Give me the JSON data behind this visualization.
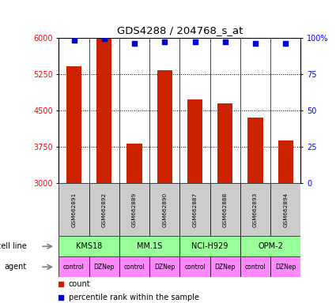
{
  "title": "GDS4288 / 204768_s_at",
  "samples": [
    "GSM662891",
    "GSM662892",
    "GSM662889",
    "GSM662890",
    "GSM662887",
    "GSM662888",
    "GSM662893",
    "GSM662894"
  ],
  "counts": [
    5400,
    5980,
    3820,
    5320,
    4720,
    4650,
    4350,
    3870
  ],
  "percentile_ranks": [
    98,
    99,
    96,
    97,
    97,
    97,
    96,
    96
  ],
  "cell_lines": [
    {
      "label": "KMS18",
      "start": 0,
      "end": 2
    },
    {
      "label": "MM.1S",
      "start": 2,
      "end": 4
    },
    {
      "label": "NCI-H929",
      "start": 4,
      "end": 6
    },
    {
      "label": "OPM-2",
      "start": 6,
      "end": 8
    }
  ],
  "agents": [
    "control",
    "DZNep",
    "control",
    "DZNep",
    "control",
    "DZNep",
    "control",
    "DZNep"
  ],
  "bar_color": "#cc2200",
  "dot_color": "#0000cc",
  "cell_line_color": "#99ff99",
  "agent_color": "#ff88ff",
  "sample_bg_color": "#cccccc",
  "ylim_left": [
    3000,
    6000
  ],
  "ylim_right": [
    0,
    100
  ],
  "yticks_left": [
    3000,
    3750,
    4500,
    5250,
    6000
  ],
  "yticks_right": [
    0,
    25,
    50,
    75,
    100
  ],
  "legend_count_label": "count",
  "legend_pct_label": "percentile rank within the sample",
  "cell_line_row_label": "cell line",
  "agent_row_label": "agent"
}
